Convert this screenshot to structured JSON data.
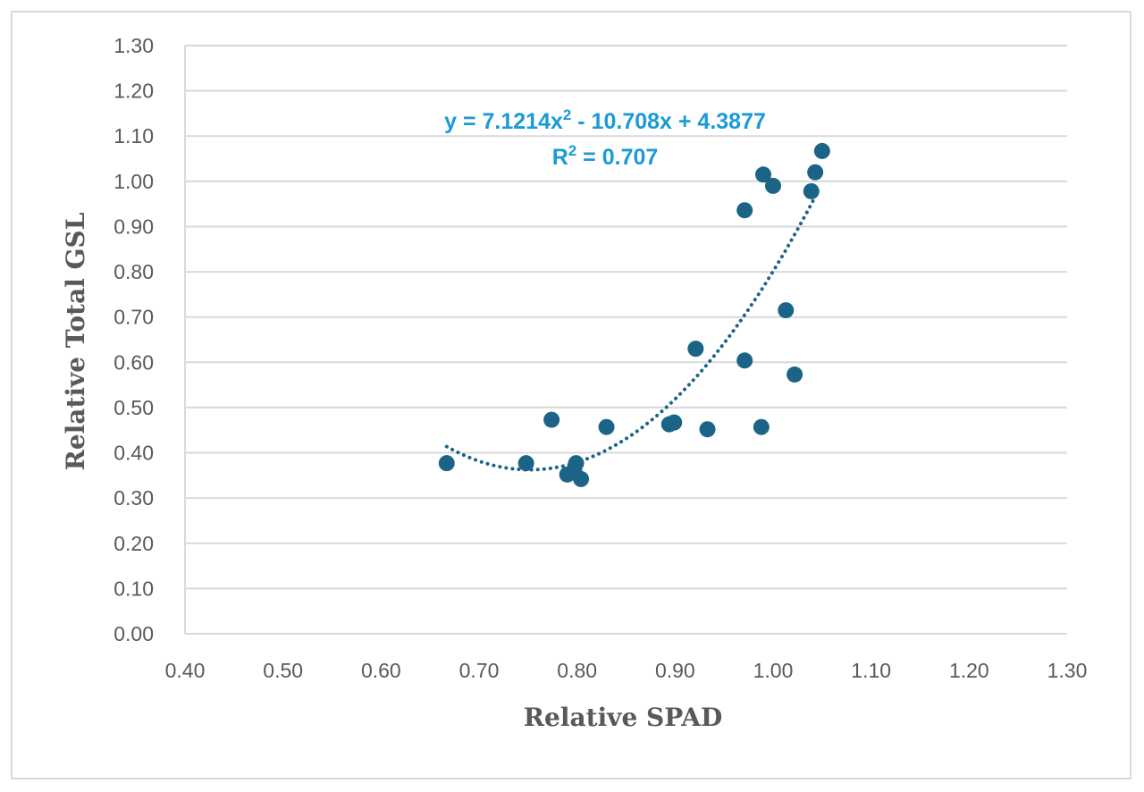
{
  "chart_data": {
    "type": "scatter",
    "xlabel": "Relative SPAD",
    "ylabel": "Relative Total GSL",
    "xlim": [
      0.4,
      1.3
    ],
    "ylim": [
      0.0,
      1.3
    ],
    "x_ticks": [
      "0.40",
      "0.50",
      "0.60",
      "0.70",
      "0.80",
      "0.90",
      "1.00",
      "1.10",
      "1.20",
      "1.30"
    ],
    "y_ticks": [
      "0.00",
      "0.10",
      "0.20",
      "0.30",
      "0.40",
      "0.50",
      "0.60",
      "0.70",
      "0.80",
      "0.90",
      "1.00",
      "1.10",
      "1.20",
      "1.30"
    ],
    "grid": "horizontal",
    "colors": {
      "points": "#1b6488",
      "trendline": "#1b6488",
      "equation": "#1a9ad6",
      "gridline": "#d9d9d9"
    },
    "series": [
      {
        "name": "Relative Total GSL",
        "points": [
          [
            0.667,
            0.377
          ],
          [
            0.748,
            0.377
          ],
          [
            0.774,
            0.473
          ],
          [
            0.79,
            0.352
          ],
          [
            0.797,
            0.362
          ],
          [
            0.799,
            0.377
          ],
          [
            0.804,
            0.342
          ],
          [
            0.83,
            0.457
          ],
          [
            0.894,
            0.463
          ],
          [
            0.899,
            0.467
          ],
          [
            0.921,
            0.63
          ],
          [
            0.933,
            0.452
          ],
          [
            0.971,
            0.936
          ],
          [
            0.971,
            0.604
          ],
          [
            0.988,
            0.457
          ],
          [
            0.99,
            1.015
          ],
          [
            1.0,
            0.99
          ],
          [
            1.013,
            0.715
          ],
          [
            1.022,
            0.573
          ],
          [
            1.039,
            0.978
          ],
          [
            1.043,
            1.02
          ],
          [
            1.05,
            1.067
          ]
        ]
      }
    ],
    "trendline": {
      "type": "polynomial-2",
      "coefficients": [
        7.1214,
        -10.708,
        4.3877
      ],
      "x_range": [
        0.667,
        1.045
      ],
      "equation_lead": "y = 7.1214x",
      "equation_sup": "2",
      "equation_tail": " - 10.708x + 4.3877",
      "r2_lead": "R",
      "r2_sup": "2",
      "r2_tail": " = 0.707"
    }
  }
}
